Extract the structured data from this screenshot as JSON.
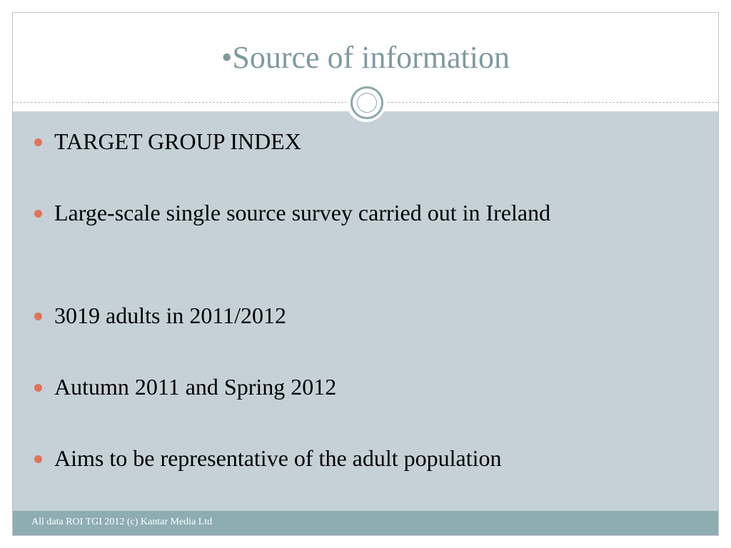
{
  "slide": {
    "title": "•Source of information",
    "bullets": [
      "TARGET GROUP INDEX",
      "Large-scale single source survey carried out in Ireland",
      "3019 adults in 2011/2012",
      "Autumn 2011 and Spring 2012",
      "Aims to be representative of the adult population"
    ],
    "footer": "All data ROI TGI 2012 (c) Kantar Media Ltd"
  },
  "colors": {
    "title": "#7f9aa0",
    "content_background": "#c5d1d7",
    "bullet": "#e0745a",
    "footer_background": "#8eadb1",
    "footer_text": "#ffffff"
  }
}
